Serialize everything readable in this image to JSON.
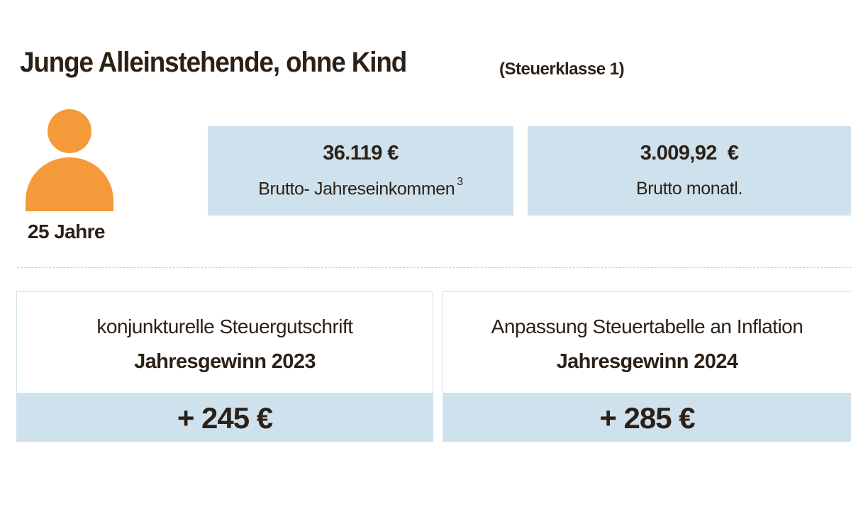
{
  "header": {
    "title": "Junge Alleinstehende, ohne Kind",
    "subtitle": "(Steuerklasse 1)"
  },
  "person": {
    "icon": "person-icon",
    "icon_color": "#f59a3a",
    "age": "25 Jahre"
  },
  "stats": [
    {
      "value": "36.119 €",
      "label": "Brutto- Jahreseinkommen",
      "footnote": "3"
    },
    {
      "value": "3.009,92  €",
      "label": "Brutto monatl."
    }
  ],
  "cards": [
    {
      "description": "konjunkturelle Steuergutschrift",
      "title": "Jahresgewinn 2023",
      "amount": "+ 245 €"
    },
    {
      "description": "Anpassung Steuertabelle an Inflation",
      "title": "Jahresgewinn 2024",
      "amount": "+ 285 €"
    }
  ],
  "colors": {
    "text": "#2b2118",
    "box_fill": "#cfe1ec",
    "accent": "#f59a3a"
  }
}
